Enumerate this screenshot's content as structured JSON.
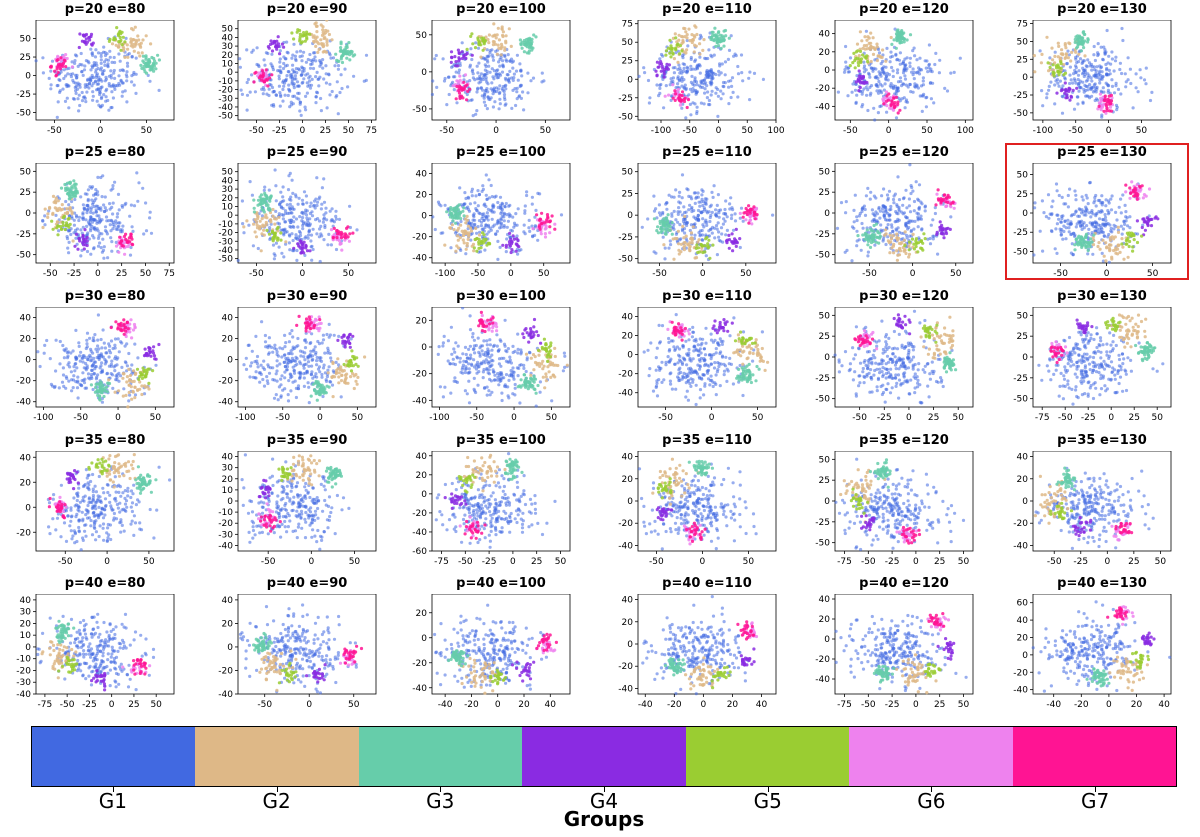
{
  "figure": {
    "colorbar_title": "Groups"
  },
  "chart_data": {
    "type": "scatter",
    "description_of_series": "t-SNE embeddings for 7 groups across perplexity (p) and epochs (e) settings",
    "groups": [
      {
        "name": "G1",
        "color": "#4169E1"
      },
      {
        "name": "G2",
        "color": "#DEB887"
      },
      {
        "name": "G3",
        "color": "#66CDAA"
      },
      {
        "name": "G4",
        "color": "#8A2BE2"
      },
      {
        "name": "G5",
        "color": "#9ACD32"
      },
      {
        "name": "G6",
        "color": "#EE82EE"
      },
      {
        "name": "G7",
        "color": "#FF1493"
      }
    ],
    "highlighted_panel": "p=25 e=130",
    "panels": [
      {
        "title": "p=20 e=80",
        "xticks": [
          -50,
          0,
          50
        ],
        "yticks": [
          -50,
          -25,
          0,
          25,
          50
        ],
        "xlim": [
          -70,
          80
        ],
        "ylim": [
          -60,
          75
        ]
      },
      {
        "title": "p=20 e=90",
        "xticks": [
          -50,
          -25,
          0,
          25,
          50,
          75
        ],
        "yticks": [
          -50,
          -40,
          -30,
          -20,
          -10,
          0,
          10,
          20,
          30,
          40,
          50
        ],
        "xlim": [
          -70,
          80
        ],
        "ylim": [
          -55,
          60
        ]
      },
      {
        "title": "p=20 e=100",
        "xticks": [
          -50,
          0,
          50
        ],
        "yticks": [
          -50,
          0,
          50
        ],
        "xlim": [
          -65,
          75
        ],
        "ylim": [
          -65,
          70
        ]
      },
      {
        "title": "p=20 e=110",
        "xticks": [
          -100,
          -50,
          0,
          50,
          100
        ],
        "yticks": [
          -50,
          -25,
          0,
          25,
          50,
          75
        ],
        "xlim": [
          -140,
          100
        ],
        "ylim": [
          -55,
          80
        ]
      },
      {
        "title": "p=20 e=120",
        "xticks": [
          -50,
          0,
          50,
          100
        ],
        "yticks": [
          -40,
          -20,
          0,
          20,
          40
        ],
        "xlim": [
          -70,
          110
        ],
        "ylim": [
          -55,
          55
        ]
      },
      {
        "title": "p=20 e=130",
        "xticks": [
          -100,
          -50,
          0,
          50
        ],
        "yticks": [
          -50,
          -25,
          0,
          25,
          50,
          75
        ],
        "xlim": [
          -115,
          95
        ],
        "ylim": [
          -60,
          80
        ]
      },
      {
        "title": "p=25 e=80",
        "xticks": [
          -50,
          -25,
          0,
          25,
          50,
          75
        ],
        "yticks": [
          -50,
          -25,
          0,
          25,
          50
        ],
        "xlim": [
          -65,
          80
        ],
        "ylim": [
          -60,
          60
        ]
      },
      {
        "title": "p=25 e=90",
        "xticks": [
          -50,
          0,
          50
        ],
        "yticks": [
          -50,
          -40,
          -30,
          -20,
          -10,
          0,
          10,
          20,
          30,
          40,
          50
        ],
        "xlim": [
          -70,
          80
        ],
        "ylim": [
          -55,
          60
        ]
      },
      {
        "title": "p=25 e=100",
        "xticks": [
          -100,
          -50,
          0,
          50
        ],
        "yticks": [
          -40,
          -20,
          0,
          20,
          40
        ],
        "xlim": [
          -120,
          90
        ],
        "ylim": [
          -45,
          50
        ]
      },
      {
        "title": "p=25 e=110",
        "xticks": [
          -50,
          0,
          50
        ],
        "yticks": [
          -50,
          -25,
          0,
          25,
          50
        ],
        "xlim": [
          -75,
          85
        ],
        "ylim": [
          -55,
          60
        ]
      },
      {
        "title": "p=25 e=120",
        "xticks": [
          -50,
          0,
          50
        ],
        "yticks": [
          -50,
          -25,
          0,
          25,
          50
        ],
        "xlim": [
          -90,
          70
        ],
        "ylim": [
          -60,
          60
        ]
      },
      {
        "title": "p=25 e=130",
        "xticks": [
          -50,
          0,
          50
        ],
        "yticks": [
          -50,
          -25,
          0,
          25,
          50
        ],
        "xlim": [
          -80,
          70
        ],
        "ylim": [
          -65,
          65
        ]
      },
      {
        "title": "p=30 e=80",
        "xticks": [
          -100,
          -50,
          0,
          50
        ],
        "yticks": [
          -40,
          -20,
          0,
          20,
          40
        ],
        "xlim": [
          -110,
          75
        ],
        "ylim": [
          -45,
          50
        ]
      },
      {
        "title": "p=30 e=90",
        "xticks": [
          -100,
          -50,
          0,
          50
        ],
        "yticks": [
          -40,
          -20,
          0,
          20,
          40
        ],
        "xlim": [
          -110,
          75
        ],
        "ylim": [
          -45,
          50
        ]
      },
      {
        "title": "p=30 e=100",
        "xticks": [
          -100,
          -50,
          0,
          50
        ],
        "yticks": [
          -40,
          -20,
          0,
          20
        ],
        "xlim": [
          -110,
          75
        ],
        "ylim": [
          -45,
          30
        ]
      },
      {
        "title": "p=30 e=110",
        "xticks": [
          -50,
          0,
          50
        ],
        "yticks": [
          -40,
          -20,
          0,
          20,
          40
        ],
        "xlim": [
          -80,
          70
        ],
        "ylim": [
          -55,
          50
        ]
      },
      {
        "title": "p=30 e=120",
        "xticks": [
          -50,
          -25,
          0,
          25,
          50
        ],
        "yticks": [
          -50,
          -25,
          0,
          25,
          50
        ],
        "xlim": [
          -75,
          65
        ],
        "ylim": [
          -60,
          60
        ]
      },
      {
        "title": "p=30 e=130",
        "xticks": [
          -75,
          -50,
          -25,
          0,
          25,
          50
        ],
        "yticks": [
          -50,
          -25,
          0,
          25,
          50
        ],
        "xlim": [
          -85,
          65
        ],
        "ylim": [
          -60,
          60
        ]
      },
      {
        "title": "p=35 e=80",
        "xticks": [
          -50,
          0,
          50
        ],
        "yticks": [
          -20,
          0,
          20,
          40
        ],
        "xlim": [
          -85,
          80
        ],
        "ylim": [
          -35,
          45
        ]
      },
      {
        "title": "p=35 e=90",
        "xticks": [
          -50,
          0,
          50
        ],
        "yticks": [
          -40,
          -30,
          -20,
          -10,
          0,
          10,
          20,
          30,
          40
        ],
        "xlim": [
          -85,
          75
        ],
        "ylim": [
          -45,
          45
        ]
      },
      {
        "title": "p=35 e=100",
        "xticks": [
          -75,
          -50,
          -25,
          0,
          25,
          50
        ],
        "yticks": [
          -60,
          -40,
          -20,
          0,
          20,
          40
        ],
        "xlim": [
          -85,
          60
        ],
        "ylim": [
          -60,
          45
        ]
      },
      {
        "title": "p=35 e=110",
        "xticks": [
          -50,
          0,
          50
        ],
        "yticks": [
          -40,
          -20,
          0,
          20,
          40
        ],
        "xlim": [
          -70,
          80
        ],
        "ylim": [
          -45,
          45
        ]
      },
      {
        "title": "p=35 e=120",
        "xticks": [
          -75,
          -50,
          -25,
          0,
          25,
          50
        ],
        "yticks": [
          -50,
          -25,
          0,
          25,
          50
        ],
        "xlim": [
          -85,
          60
        ],
        "ylim": [
          -60,
          60
        ]
      },
      {
        "title": "p=35 e=130",
        "xticks": [
          -50,
          -25,
          0,
          25,
          50
        ],
        "yticks": [
          -40,
          -20,
          0,
          20,
          40
        ],
        "xlim": [
          -70,
          60
        ],
        "ylim": [
          -45,
          45
        ]
      },
      {
        "title": "p=40 e=80",
        "xticks": [
          -75,
          -50,
          -25,
          0,
          25,
          50
        ],
        "yticks": [
          -40,
          -30,
          -20,
          -10,
          0,
          10,
          20,
          30,
          40
        ],
        "xlim": [
          -85,
          70
        ],
        "ylim": [
          -40,
          45
        ]
      },
      {
        "title": "p=40 e=90",
        "xticks": [
          -50,
          0,
          50
        ],
        "yticks": [
          -40,
          -20,
          0,
          20,
          40
        ],
        "xlim": [
          -80,
          75
        ],
        "ylim": [
          -40,
          45
        ]
      },
      {
        "title": "p=40 e=100",
        "xticks": [
          -40,
          -20,
          0,
          20,
          40
        ],
        "yticks": [
          -40,
          -20,
          0,
          20
        ],
        "xlim": [
          -50,
          55
        ],
        "ylim": [
          -45,
          35
        ]
      },
      {
        "title": "p=40 e=110",
        "xticks": [
          -40,
          -20,
          0,
          20,
          40
        ],
        "yticks": [
          -40,
          -20,
          0,
          20,
          40
        ],
        "xlim": [
          -45,
          50
        ],
        "ylim": [
          -45,
          45
        ]
      },
      {
        "title": "p=40 e=120",
        "xticks": [
          -75,
          -50,
          -25,
          0,
          25,
          50
        ],
        "yticks": [
          -40,
          -20,
          0,
          20,
          40
        ],
        "xlim": [
          -85,
          60
        ],
        "ylim": [
          -55,
          45
        ]
      },
      {
        "title": "p=40 e=130",
        "xticks": [
          -40,
          -20,
          0,
          20,
          40
        ],
        "yticks": [
          -40,
          -20,
          0,
          20,
          40,
          60
        ],
        "xlim": [
          -55,
          45
        ],
        "ylim": [
          -45,
          70
        ]
      }
    ]
  }
}
